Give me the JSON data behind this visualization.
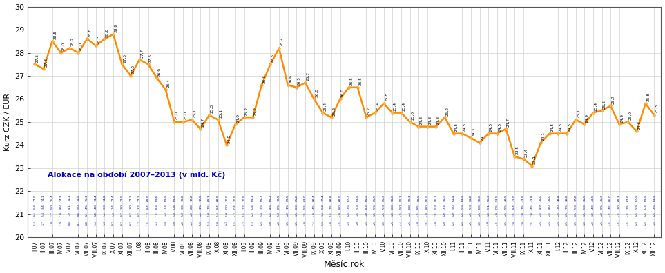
{
  "title": "",
  "ylabel": "Kurz CZK / EUR",
  "xlabel": "Měsíc.rok",
  "ylim": [
    20,
    30
  ],
  "yticks": [
    20,
    21,
    22,
    23,
    24,
    25,
    26,
    27,
    28,
    29,
    30
  ],
  "line_color": "#FF8C00",
  "marker_color": "#FF8C00",
  "background_color": "#FFFFFF",
  "grid_color": "#AAAAAA",
  "annotation_text_color": "#000000",
  "blue_text_color": "#0000CD",
  "blue_data_color": "#0000CD",
  "annotation_label": "Alokace na období 2007–2013 (v mld. Kč)",
  "x_labels": [
    "I.07",
    "II.07",
    "III.07",
    "IV.07",
    "V.07",
    "VI.07",
    "VII.07",
    "VIII.07",
    "IX.07",
    "X.07",
    "XI.07",
    "XII.07",
    "I.08",
    "II.08",
    "III.08",
    "IV.08",
    "V.08",
    "VI.08",
    "VII.08",
    "VIII.08",
    "IX.08",
    "X.08",
    "XI.08",
    "XII.08",
    "I.09",
    "II.09",
    "III.09",
    "IV.09",
    "V.09",
    "VI.09",
    "VII.09",
    "VIII.09",
    "IX.09",
    "X.09",
    "XI.09",
    "XII.09",
    "I.10",
    "II.10",
    "III.10",
    "IV.10",
    "V.10",
    "VI.10",
    "VII.10",
    "VIII.10",
    "IX.10",
    "X.10",
    "XI.10",
    "XII.10",
    "I.11",
    "II.11",
    "III.11",
    "IV.11",
    "V.11",
    "VI.11",
    "VII.11",
    "VIII.11",
    "IX.11",
    "X.11",
    "XI.11",
    "XII.11",
    "I.12",
    "II.12",
    "III.12",
    "IV.12",
    "V.12",
    "VI.12",
    "VII.12",
    "VIII.12",
    "IX.12",
    "X.12",
    "XI.12",
    "XII.12"
  ],
  "kurz_values": [
    27.5,
    27.3,
    28.5,
    28.0,
    28.2,
    28.0,
    28.6,
    28.3,
    28.6,
    28.8,
    27.5,
    27.0,
    27.7,
    27.5,
    26.9,
    26.4,
    25.0,
    25.0,
    25.1,
    24.7,
    25.3,
    25.1,
    24.0,
    24.9,
    25.2,
    25.2,
    26.6,
    27.5,
    28.2,
    26.6,
    26.5,
    26.7,
    26.0,
    25.4,
    25.2,
    26.0,
    26.5,
    26.5,
    25.2,
    25.4,
    25.8,
    25.4,
    25.4,
    25.0,
    24.8,
    24.8,
    24.8,
    25.2,
    24.5,
    24.5,
    24.3,
    24.1,
    24.5,
    24.5,
    24.7,
    23.5,
    23.4,
    23.1,
    24.1,
    24.5,
    24.5,
    24.5,
    25.1,
    24.9,
    25.4,
    25.5,
    25.7,
    24.9,
    25.0,
    24.6,
    25.8,
    25.3
  ],
  "alloc_row1": [
    "77,0",
    "74,1",
    "75,4",
    "74,3",
    "74,1",
    "74,5",
    "75,1",
    "74,4",
    "74,0",
    "73,4",
    "73,5",
    "73,2",
    "73,2",
    "69,0",
    "69,6",
    "69,5",
    "69,5",
    "70,0",
    "72,2",
    "72,5",
    "69,3",
    "68,9",
    "70,0",
    "70,5",
    "70,5",
    "69,1",
    "65,7",
    "65,2",
    "70,9",
    "69,5",
    "65,8",
    "63,0",
    "68,4",
    "77,4",
    "68,8",
    "68,0",
    "67,7",
    "63,5",
    "65,5",
    "65,5",
    "65,3",
    "59,0",
    "59,3",
    "59,1",
    "59,5",
    "55,5",
    "55,3",
    "55,5",
    "61,4",
    "63,9",
    "61,8",
    "58,0",
    "56,3",
    "53,5",
    "48,5",
    "42,0",
    "43,5",
    "43,8",
    "35,0",
    "35,0",
    "38,4",
    "38,0",
    "37,0",
    "35,5",
    "43,5",
    "45,3",
    "65,0",
    "69,3",
    "67,0",
    "67,5",
    "69,5",
    "63,9"
  ],
  "alloc_row2": [
    "5,4",
    "3,4",
    "5,0",
    "4,0",
    "4,1",
    "5,0",
    "4,5",
    "4,8",
    "3,3",
    "2,4",
    "3,0",
    "3,0",
    "3,2",
    "8,4",
    "8,3",
    "7,3",
    "0,8",
    "3,0",
    "2,8",
    "1,5",
    "1,5",
    "8,4",
    "0,0",
    "0,4",
    "2,2",
    "0,4",
    "3,5",
    "4,5",
    "8,5",
    "1,5",
    "0,3",
    "5,5",
    "4,5",
    "5,2",
    "1,5",
    "8,0",
    "7,5",
    "5,3",
    "8,3",
    "5,5",
    "5,3",
    "0,0",
    "5,0",
    "8,8",
    "8,5",
    "8,0",
    "5,3",
    "3,3",
    "9,0",
    "5,5",
    "5,3",
    "8,0",
    "5,1",
    "0,5",
    "9,5",
    "8,4",
    "7,5",
    "4,5",
    "4,9",
    "4,0",
    "7,0",
    "7,5",
    "5,3",
    "5,0",
    "4,0",
    "0,5",
    "4,5",
    "3,0",
    "7,5",
    "5,5",
    "0,3",
    "3,5"
  ],
  "alloc_row3": [
    "0,4",
    "5,4",
    "3,7",
    "1,0",
    "1,9",
    "0,8",
    "0,1",
    "0,8",
    "1,4",
    "1,3",
    "0,2",
    "0,2",
    "0,2",
    "1,3",
    "1,5",
    "3,3",
    "5,8",
    "5,0",
    "4,0",
    "4,4",
    "5,0",
    "5,4",
    "5,0",
    "4,3",
    "5,5",
    "4,3",
    "5,4",
    "4,5",
    "5,0",
    "4,0",
    "3,5",
    "3,5",
    "4,0",
    "7,4",
    "5,5",
    "4,0",
    "4,5",
    "3,5",
    "3,0",
    "3,5",
    "4,5",
    "3,0",
    "4,5",
    "4,4",
    "4,5",
    "4,0",
    "3,5",
    "4,0",
    "4,0",
    "4,5",
    "4,5",
    "4,5",
    "3,0",
    "4,0",
    "4,5",
    "3,5",
    "3,0",
    "2,0",
    "2,5",
    "2,5",
    "2,5",
    "2,5",
    "2,5",
    "3,5",
    "3,0",
    "4,0",
    "4,5",
    "4,5",
    "4,5",
    "4,5",
    "4,5",
    "4,5"
  ],
  "alloc_row4": [
    "5,4",
    "3,7",
    "1,0",
    "1,9",
    "0,8",
    "0,1",
    "0,8",
    "1,4",
    "1,3",
    "0,2",
    "0,2",
    "0,2",
    "1,3",
    "1,5",
    "3,3",
    "5,8",
    "5,0",
    "4,0",
    "4,4",
    "5,0",
    "5,4",
    "5,0",
    "4,3",
    "5,5",
    "4,3",
    "5,4",
    "4,5",
    "5,0",
    "4,0",
    "3,5",
    "3,5",
    "4,0",
    "7,4",
    "5,5",
    "4,0",
    "4,5",
    "3,5",
    "3,0",
    "3,5",
    "4,5",
    "3,0",
    "4,5",
    "4,4",
    "4,5",
    "4,0",
    "3,5",
    "4,0",
    "4,0",
    "4,5",
    "4,5",
    "4,5",
    "3,0",
    "4,0",
    "4,5",
    "3,5",
    "3,0",
    "2,0",
    "2,5",
    "2,5",
    "2,5",
    "2,5",
    "2,5",
    "3,5",
    "3,0",
    "4,0",
    "4,5",
    "4,5",
    "4,5",
    "4,5",
    "4,5",
    "4,5",
    "3,5"
  ]
}
